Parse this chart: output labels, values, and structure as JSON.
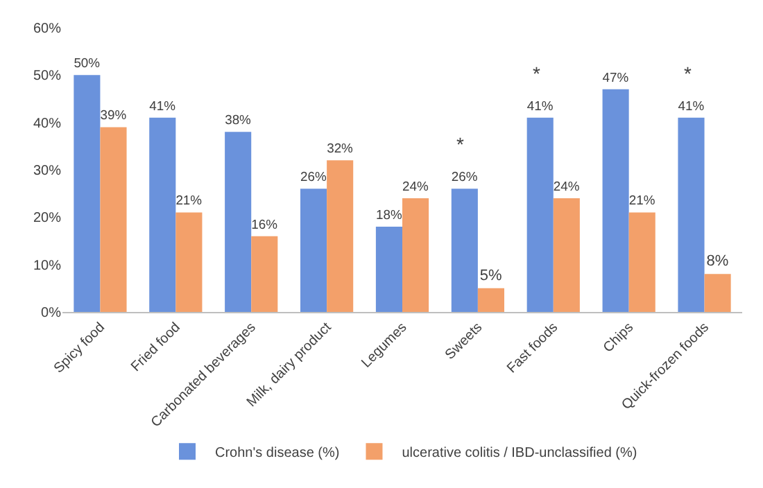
{
  "chart_data": {
    "type": "bar",
    "categories": [
      "Spicy food",
      "Fried food",
      "Carbonated beverages",
      "Milk, dairy product",
      "Legumes",
      "Sweets",
      "Fast foods",
      "Chips",
      "Quick-frozen foods"
    ],
    "series": [
      {
        "name": "Crohn's disease (%)",
        "color": "#6a92dc",
        "values": [
          50,
          41,
          38,
          26,
          18,
          26,
          41,
          47,
          41
        ],
        "value_labels": [
          "50%",
          "41%",
          "38%",
          "26%",
          "18%",
          "26%",
          "41%",
          "47%",
          "41%"
        ]
      },
      {
        "name": "ulcerative colitis / IBD-unclassified (%)",
        "color": "#f3a06a",
        "values": [
          39,
          21,
          16,
          32,
          24,
          5,
          24,
          21,
          8
        ],
        "value_labels": [
          "39%",
          "21%",
          "16%",
          "32%",
          "24%",
          "5%",
          "24%",
          "21%",
          "8%"
        ]
      }
    ],
    "ylim": [
      0,
      60
    ],
    "yticks": [
      {
        "value": 0,
        "label": "0%"
      },
      {
        "value": 10,
        "label": "10%"
      },
      {
        "value": 20,
        "label": "20%"
      },
      {
        "value": 30,
        "label": "30%"
      },
      {
        "value": 40,
        "label": "40%"
      },
      {
        "value": 50,
        "label": "50%"
      },
      {
        "value": 60,
        "label": "60%"
      }
    ],
    "annotations": [
      {
        "text": "*",
        "x": "Sweets",
        "y": 26
      },
      {
        "text": "*",
        "x": "Fast foods",
        "y": 41
      },
      {
        "text": "*",
        "x": "Quick-frozen foods",
        "y": 41
      }
    ],
    "grid": false,
    "legend": "bottom"
  }
}
